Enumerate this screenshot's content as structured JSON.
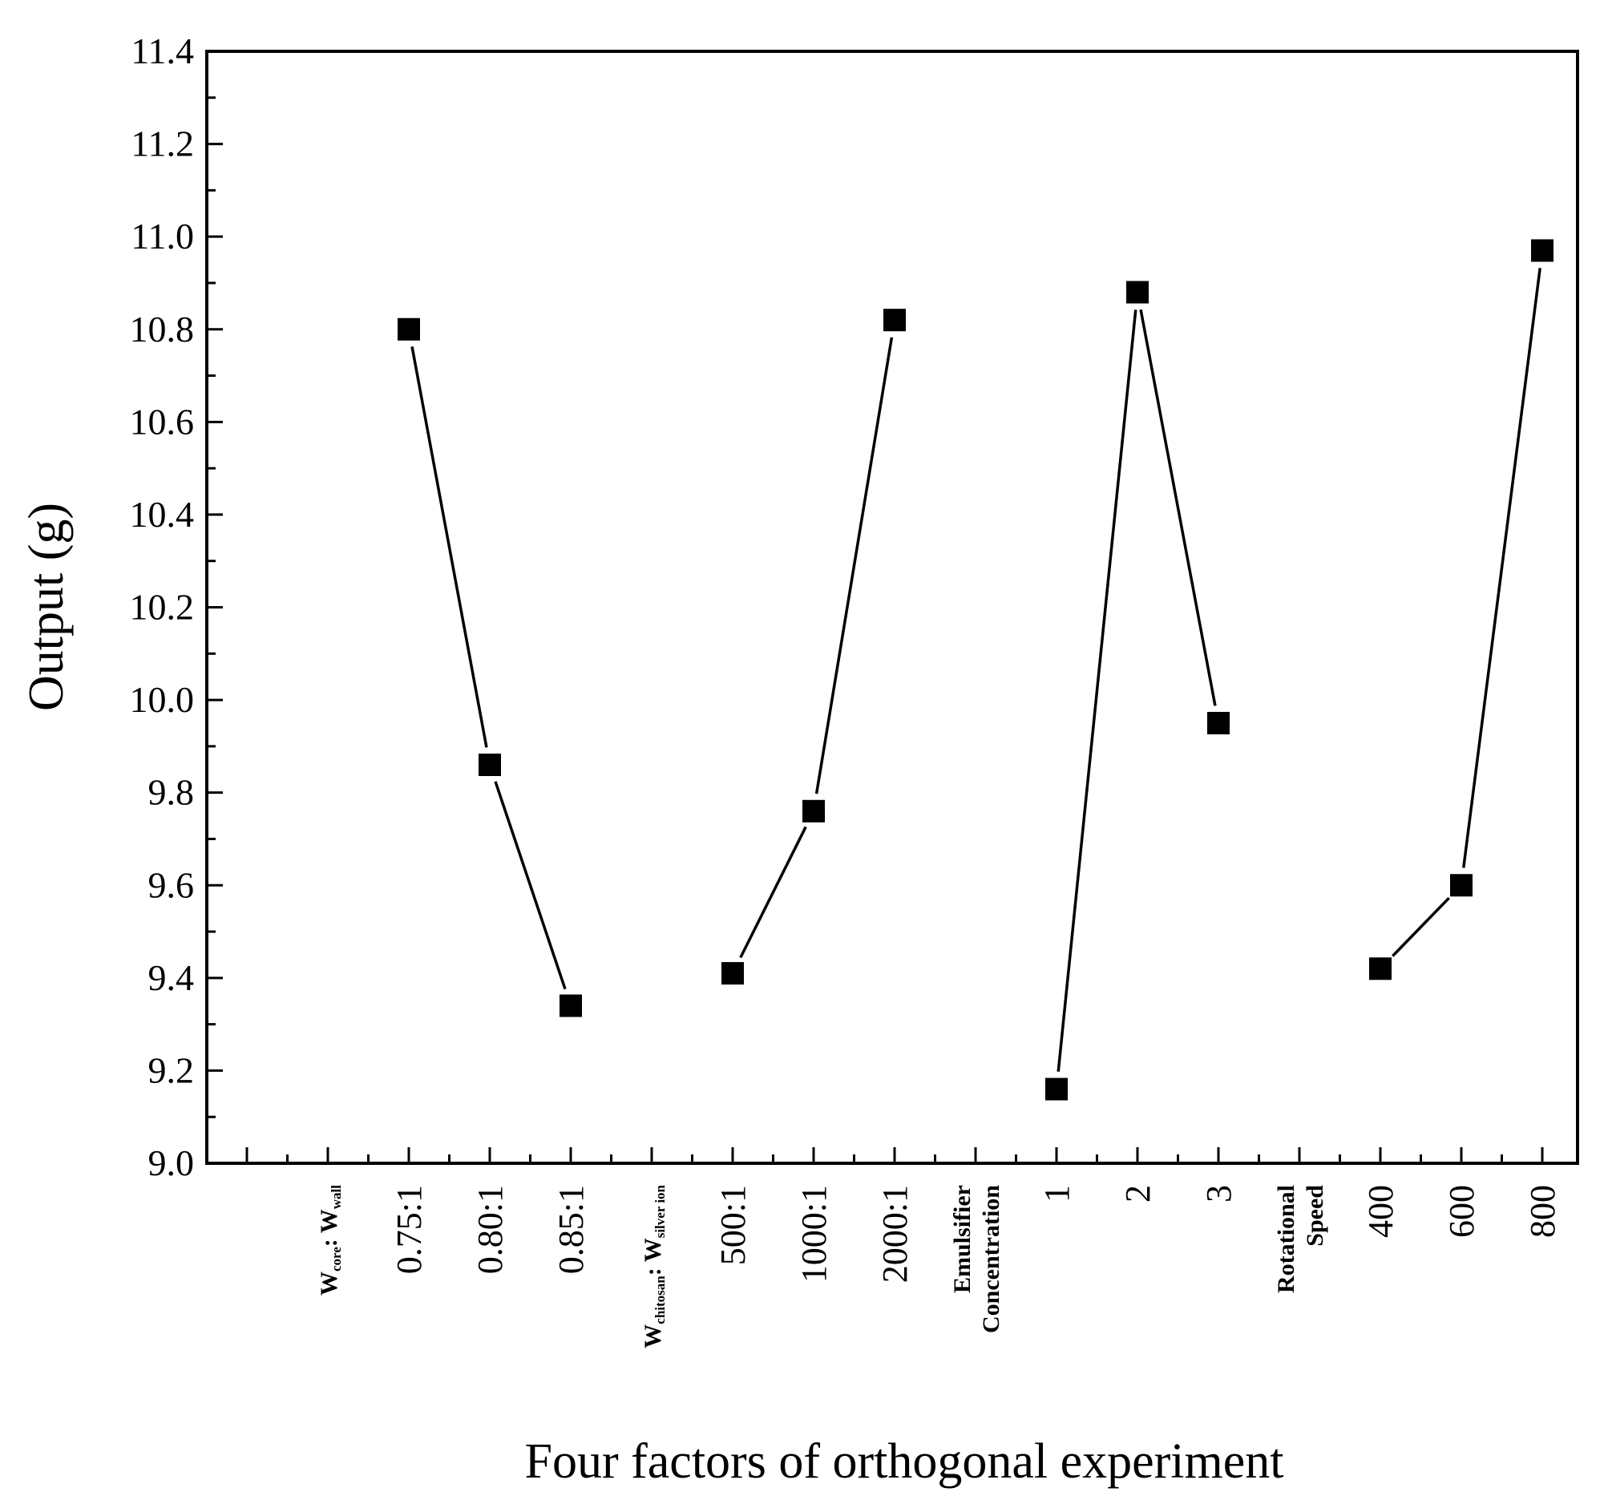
{
  "chart_data": {
    "type": "line",
    "title": "",
    "ylabel": "Output (g)",
    "xlabel": "Four factors of orthogonal experiment",
    "ylim": [
      9.0,
      11.4
    ],
    "y_ticks": [
      "9.0",
      "9.2",
      "9.4",
      "9.6",
      "9.8",
      "10.0",
      "10.2",
      "10.4",
      "10.6",
      "10.8",
      "11.0",
      "11.2",
      "11.4"
    ],
    "grid": false,
    "legend": "none",
    "factors": [
      {
        "name_parts": [
          {
            "text": "W",
            "sub": false
          },
          {
            "text": "core",
            "sub": true
          },
          {
            "text": ": W",
            "sub": false
          },
          {
            "text": "wall",
            "sub": true
          }
        ],
        "slot": 1,
        "lines": [
          ""
        ]
      },
      {
        "name_parts": [
          {
            "text": "W",
            "sub": false
          },
          {
            "text": "chitosan",
            "sub": true
          },
          {
            "text": ": W",
            "sub": false
          },
          {
            "text": "silver ion",
            "sub": true
          }
        ],
        "slot": 5,
        "lines": [
          ""
        ]
      },
      {
        "lines": [
          "Emulsifier",
          "Concentration"
        ],
        "slot": 9
      },
      {
        "lines": [
          "Rotational",
          "Speed"
        ],
        "slot": 13
      }
    ],
    "series": [
      {
        "name": "Wcore: Wwall",
        "slots": [
          2,
          3,
          4
        ],
        "categories": [
          "0.75:1",
          "0.80:1",
          "0.85:1"
        ],
        "values": [
          10.8,
          9.86,
          9.34
        ]
      },
      {
        "name": "Wchitosan: Wsilver ion",
        "slots": [
          6,
          7,
          8
        ],
        "categories": [
          "500:1",
          "1000:1",
          "2000:1"
        ],
        "values": [
          9.41,
          9.76,
          10.82
        ]
      },
      {
        "name": "Emulsifier Concentration",
        "slots": [
          10,
          11,
          12
        ],
        "categories": [
          "1",
          "2",
          "3"
        ],
        "values": [
          9.16,
          10.88,
          9.95
        ]
      },
      {
        "name": "Rotational Speed",
        "slots": [
          14,
          15,
          16
        ],
        "categories": [
          "400",
          "600",
          "800"
        ],
        "values": [
          9.42,
          9.6,
          10.97
        ]
      }
    ]
  }
}
